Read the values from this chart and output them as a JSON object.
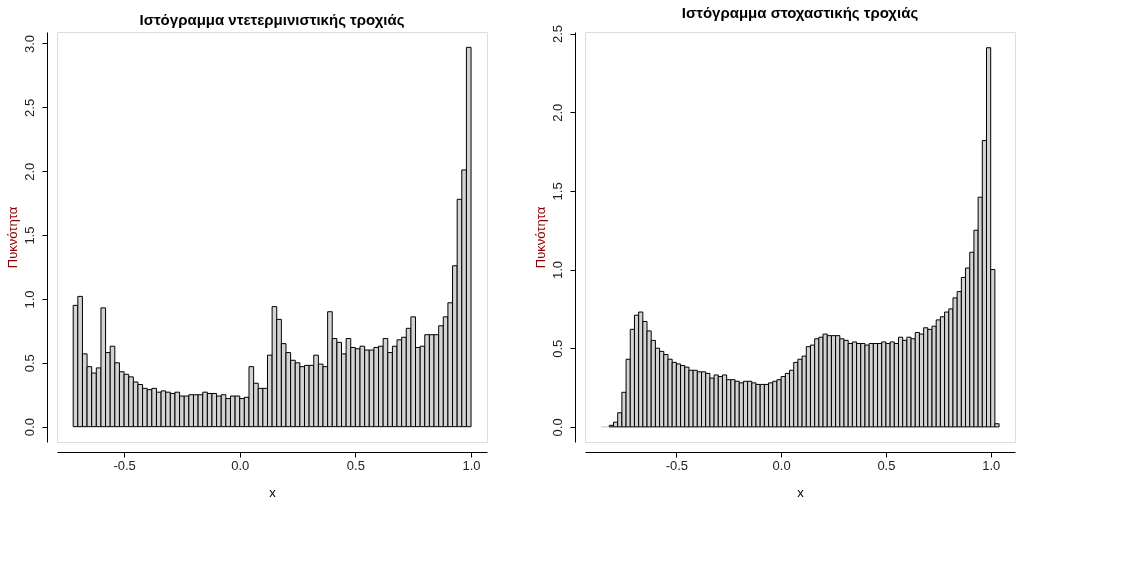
{
  "chart_data": [
    {
      "type": "histogram",
      "title": "Ιστόγραμμα ντετερμινιστικής τροχιάς",
      "xlabel": "x",
      "ylabel": "Πυκνότητα",
      "color": "#d3d3d3",
      "bins": [
        -0.72,
        -0.7,
        -0.68,
        -0.66,
        -0.64,
        -0.62,
        -0.6,
        -0.58,
        -0.56,
        -0.54,
        -0.52,
        -0.5,
        -0.48,
        -0.46,
        -0.44,
        -0.42,
        -0.4,
        -0.38,
        -0.36,
        -0.34,
        -0.32,
        -0.3,
        -0.28,
        -0.26,
        -0.24,
        -0.22,
        -0.2,
        -0.18,
        -0.16,
        -0.14,
        -0.12,
        -0.1,
        -0.08,
        -0.06,
        -0.04,
        -0.02,
        0.0,
        0.02,
        0.04,
        0.06,
        0.08,
        0.1,
        0.12,
        0.14,
        0.16,
        0.18,
        0.2,
        0.22,
        0.24,
        0.26,
        0.28,
        0.3,
        0.32,
        0.34,
        0.36,
        0.38,
        0.4,
        0.42,
        0.44,
        0.46,
        0.48,
        0.5,
        0.52,
        0.54,
        0.56,
        0.58,
        0.6,
        0.62,
        0.64,
        0.66,
        0.68,
        0.7,
        0.72,
        0.74,
        0.76,
        0.78,
        0.8,
        0.82,
        0.84,
        0.86,
        0.88,
        0.9,
        0.92,
        0.94,
        0.96,
        0.98,
        1.0
      ],
      "values": [
        0.95,
        1.02,
        0.57,
        0.47,
        0.42,
        0.46,
        0.93,
        0.58,
        0.63,
        0.5,
        0.43,
        0.41,
        0.39,
        0.35,
        0.33,
        0.3,
        0.29,
        0.3,
        0.27,
        0.28,
        0.27,
        0.26,
        0.27,
        0.24,
        0.24,
        0.25,
        0.25,
        0.25,
        0.27,
        0.26,
        0.26,
        0.24,
        0.25,
        0.22,
        0.24,
        0.24,
        0.22,
        0.23,
        0.47,
        0.34,
        0.3,
        0.3,
        0.56,
        0.94,
        0.84,
        0.65,
        0.58,
        0.52,
        0.5,
        0.47,
        0.48,
        0.48,
        0.56,
        0.49,
        0.47,
        0.9,
        0.69,
        0.66,
        0.57,
        0.69,
        0.62,
        0.61,
        0.63,
        0.6,
        0.6,
        0.62,
        0.63,
        0.69,
        0.58,
        0.63,
        0.68,
        0.7,
        0.77,
        0.86,
        0.62,
        0.63,
        0.72,
        0.72,
        0.72,
        0.79,
        0.86,
        0.97,
        1.26,
        1.78,
        2.01,
        2.97
      ],
      "xlim": [
        -0.79,
        1.069
      ],
      "ylim": [
        -0.12,
        3.09
      ],
      "xticks": [
        {
          "value": -0.5,
          "label": "-0.5"
        },
        {
          "value": 0,
          "label": "0.0"
        },
        {
          "value": 0.5,
          "label": "0.5"
        },
        {
          "value": 1,
          "label": "1.0"
        }
      ],
      "yticks": [
        {
          "value": 0,
          "label": "0.0"
        },
        {
          "value": 0.5,
          "label": "0.5"
        },
        {
          "value": 1,
          "label": "1.0"
        },
        {
          "value": 1.5,
          "label": "1.5"
        },
        {
          "value": 2,
          "label": "2.0"
        },
        {
          "value": 2.5,
          "label": "2.5"
        },
        {
          "value": 3,
          "label": "3.0"
        }
      ],
      "grid": false
    },
    {
      "type": "histogram",
      "title": "Ιστόγραμμα στοχαστικής τροχιάς",
      "xlabel": "x",
      "ylabel": "Πυκνότητα",
      "color": "#d3d3d3",
      "bins": [
        -0.86,
        -0.84,
        -0.82,
        -0.8,
        -0.78,
        -0.76,
        -0.74,
        -0.72,
        -0.7,
        -0.68,
        -0.66,
        -0.64,
        -0.62,
        -0.6,
        -0.58,
        -0.56,
        -0.54,
        -0.52,
        -0.5,
        -0.48,
        -0.46,
        -0.44,
        -0.42,
        -0.4,
        -0.38,
        -0.36,
        -0.34,
        -0.32,
        -0.3,
        -0.28,
        -0.26,
        -0.24,
        -0.22,
        -0.2,
        -0.18,
        -0.16,
        -0.14,
        -0.12,
        -0.1,
        -0.08,
        -0.06,
        -0.04,
        -0.02,
        0.0,
        0.02,
        0.04,
        0.06,
        0.08,
        0.1,
        0.12,
        0.14,
        0.16,
        0.18,
        0.2,
        0.22,
        0.24,
        0.26,
        0.28,
        0.3,
        0.32,
        0.34,
        0.36,
        0.38,
        0.4,
        0.42,
        0.44,
        0.46,
        0.48,
        0.5,
        0.52,
        0.54,
        0.56,
        0.58,
        0.6,
        0.62,
        0.64,
        0.66,
        0.68,
        0.7,
        0.72,
        0.74,
        0.76,
        0.78,
        0.8,
        0.82,
        0.84,
        0.86,
        0.88,
        0.9,
        0.92,
        0.94,
        0.96,
        0.98,
        1.0,
        1.02,
        1.04
      ],
      "values": [
        0,
        0,
        0.01,
        0.03,
        0.09,
        0.22,
        0.43,
        0.62,
        0.71,
        0.73,
        0.67,
        0.61,
        0.55,
        0.5,
        0.48,
        0.46,
        0.43,
        0.41,
        0.4,
        0.39,
        0.38,
        0.36,
        0.36,
        0.35,
        0.35,
        0.34,
        0.31,
        0.33,
        0.32,
        0.33,
        0.3,
        0.3,
        0.29,
        0.28,
        0.29,
        0.29,
        0.28,
        0.27,
        0.27,
        0.27,
        0.28,
        0.29,
        0.3,
        0.32,
        0.34,
        0.36,
        0.41,
        0.43,
        0.45,
        0.51,
        0.52,
        0.56,
        0.57,
        0.59,
        0.58,
        0.58,
        0.58,
        0.56,
        0.55,
        0.53,
        0.54,
        0.53,
        0.53,
        0.52,
        0.53,
        0.53,
        0.53,
        0.54,
        0.53,
        0.54,
        0.53,
        0.57,
        0.55,
        0.57,
        0.56,
        0.6,
        0.59,
        0.63,
        0.62,
        0.64,
        0.68,
        0.7,
        0.73,
        0.75,
        0.82,
        0.86,
        0.95,
        1.01,
        1.11,
        1.25,
        1.46,
        1.82,
        2.41,
        1.0,
        0.02
      ],
      "xlim": [
        -0.936,
        1.116
      ],
      "ylim": [
        -0.096,
        2.51
      ],
      "xticks": [
        {
          "value": -0.5,
          "label": "-0.5"
        },
        {
          "value": 0,
          "label": "0.0"
        },
        {
          "value": 0.5,
          "label": "0.5"
        },
        {
          "value": 1,
          "label": "1.0"
        }
      ],
      "yticks": [
        {
          "value": 0,
          "label": "0.0"
        },
        {
          "value": 0.5,
          "label": "0.5"
        },
        {
          "value": 1,
          "label": "1.0"
        },
        {
          "value": 1.5,
          "label": "1.5"
        },
        {
          "value": 2,
          "label": "2.0"
        },
        {
          "value": 2.5,
          "label": "2.5"
        }
      ],
      "grid": false
    }
  ]
}
